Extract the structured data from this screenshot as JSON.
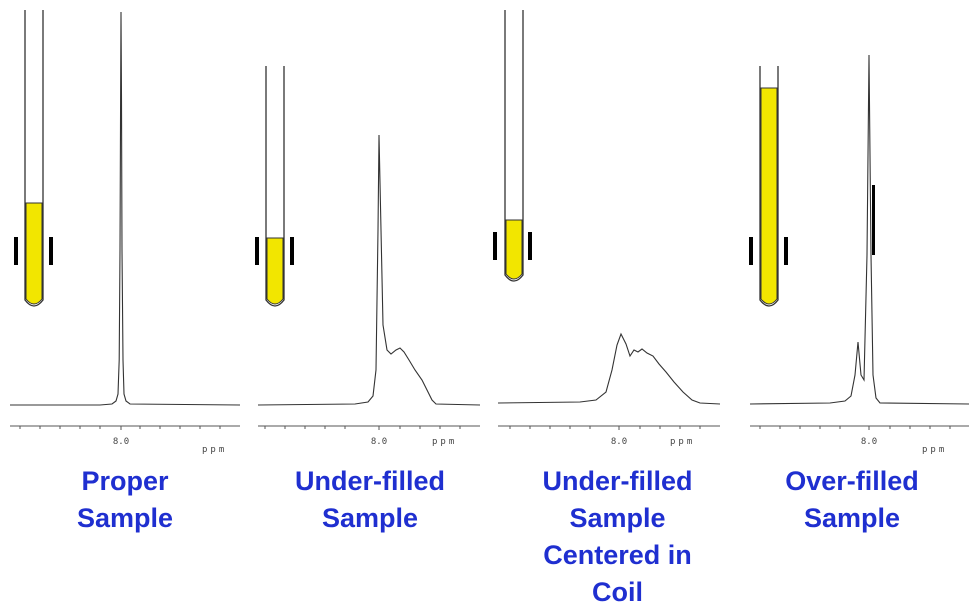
{
  "colors": {
    "caption": "#1f2fd0",
    "sample_fill": "#f2e600",
    "tube_outline": "#333333",
    "spectrum_line": "#333333",
    "coil_marker": "#000000"
  },
  "panels": [
    {
      "label_lines": [
        "Proper",
        "Sample"
      ],
      "axis": {
        "tick_value": "8.0",
        "unit": "ppm"
      },
      "sample_description": "fill reaches above coil region",
      "peak_shape": "sharp single peak"
    },
    {
      "label_lines": [
        "Under-filled",
        "Sample"
      ],
      "axis": {
        "tick_value": "8.0",
        "unit": "ppm"
      },
      "sample_description": "fill ends near middle of coil region",
      "peak_shape": "lower peak with tailing shoulder"
    },
    {
      "label_lines": [
        "Under-filled",
        "Sample",
        "Centered in",
        "Coil"
      ],
      "axis": {
        "tick_value": "8.0",
        "unit": "ppm"
      },
      "sample_description": "small sample centered within coil",
      "peak_shape": "very broad low peak"
    },
    {
      "label_lines": [
        "Over-filled",
        "Sample"
      ],
      "axis": {
        "tick_value": "8.0",
        "unit": "ppm"
      },
      "sample_description": "fill extends far above coil",
      "peak_shape": "tall peak with side shoulder"
    }
  ]
}
